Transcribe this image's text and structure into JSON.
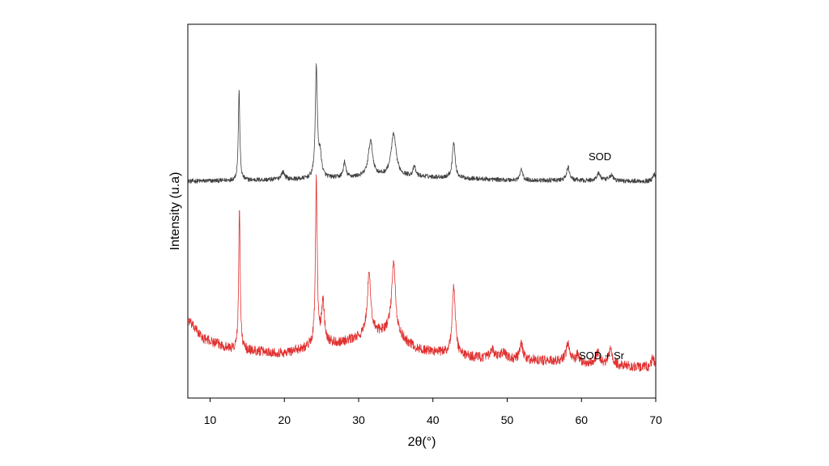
{
  "chart_data": {
    "type": "line",
    "xlabel": "2θ(°)",
    "ylabel": "Intensity (u.a)",
    "xlim": [
      7,
      70
    ],
    "ylim": [
      0,
      100
    ],
    "grid": false,
    "y_tick_labels": false,
    "x_ticks": [
      10,
      20,
      30,
      40,
      50,
      60,
      70
    ],
    "x_tick_labels": [
      "10",
      "20",
      "30",
      "40",
      "50",
      "60",
      "70"
    ],
    "series": [
      {
        "name": "SOD",
        "color": "#404040",
        "baseline": 58,
        "noise": 0.6,
        "drift": [
          [
            7,
            0
          ],
          [
            22,
            0.5
          ],
          [
            35,
            1.5
          ],
          [
            50,
            0.3
          ],
          [
            70,
            0
          ]
        ],
        "peaks": [
          [
            13.9,
            24,
            0.12
          ],
          [
            19.8,
            2,
            0.3
          ],
          [
            24.3,
            29.5,
            0.16
          ],
          [
            24.8,
            6,
            0.25
          ],
          [
            28.1,
            4,
            0.2
          ],
          [
            31.6,
            9.5,
            0.35
          ],
          [
            34.7,
            11,
            0.4
          ],
          [
            37.5,
            2.5,
            0.2
          ],
          [
            42.8,
            9.5,
            0.22
          ],
          [
            51.9,
            3,
            0.2
          ],
          [
            58.2,
            3.5,
            0.25
          ],
          [
            62.3,
            2,
            0.3
          ],
          [
            64.0,
            1.5,
            0.3
          ],
          [
            69.8,
            2,
            0.2
          ]
        ]
      },
      {
        "name": "SOD + Sr",
        "color": "#e0302f",
        "baseline": 6,
        "noise": 1.3,
        "drift": [
          [
            7,
            15
          ],
          [
            9,
            10
          ],
          [
            13,
            7
          ],
          [
            20,
            6
          ],
          [
            24,
            8
          ],
          [
            28,
            9
          ],
          [
            34,
            12
          ],
          [
            38,
            7
          ],
          [
            45,
            5
          ],
          [
            55,
            4
          ],
          [
            70,
            2
          ]
        ],
        "peaks": [
          [
            13.95,
            38,
            0.12
          ],
          [
            24.3,
            44,
            0.14
          ],
          [
            25.2,
            11,
            0.25
          ],
          [
            31.4,
            16,
            0.3
          ],
          [
            34.7,
            19,
            0.3
          ],
          [
            42.8,
            18,
            0.25
          ],
          [
            48,
            2,
            0.3
          ],
          [
            49.5,
            2,
            0.3
          ],
          [
            51.9,
            4,
            0.25
          ],
          [
            58.2,
            5,
            0.3
          ],
          [
            59.5,
            2,
            0.3
          ],
          [
            62.2,
            3,
            0.3
          ],
          [
            63.9,
            4,
            0.3
          ],
          [
            69.6,
            3,
            0.2
          ]
        ]
      }
    ]
  }
}
